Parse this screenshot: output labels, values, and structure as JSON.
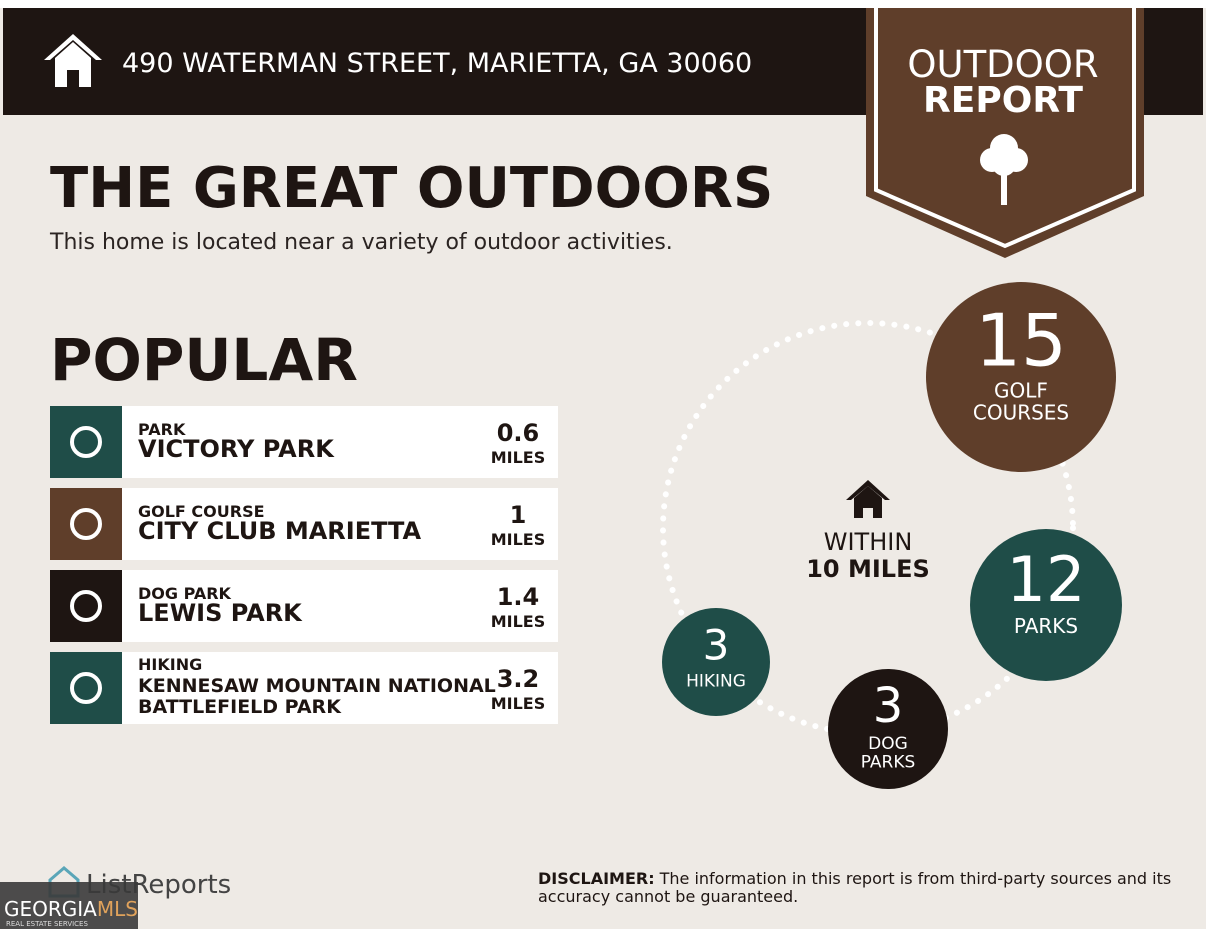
{
  "header": {
    "address": "490 WATERMAN STREET, MARIETTA, GA 30060"
  },
  "badge": {
    "line1": "OUTDOOR",
    "line2": "REPORT"
  },
  "title": "THE GREAT OUTDOORS",
  "subtitle": "This home is located near a variety of outdoor activities.",
  "popular": {
    "heading": "POPULAR",
    "items": [
      {
        "category": "PARK",
        "name_lines": [
          "VICTORY PARK"
        ],
        "distance": 0.6,
        "unit": "MILES",
        "color": "#1f4d48"
      },
      {
        "category": "GOLF COURSE",
        "name_lines": [
          "CITY CLUB MARIETTA"
        ],
        "distance": 1,
        "unit": "MILES",
        "color": "#5f3e2a"
      },
      {
        "category": "DOG PARK",
        "name_lines": [
          "LEWIS PARK"
        ],
        "distance": 1.4,
        "unit": "MILES",
        "color": "#1e1512"
      },
      {
        "category": "HIKING",
        "name_lines": [
          "KENNESAW MOUNTAIN NATIONAL",
          "BATTLEFIELD PARK"
        ],
        "distance": 3.2,
        "unit": "MILES",
        "color": "#1f4d48"
      }
    ]
  },
  "radius": {
    "line1": "WITHIN",
    "line2": "10 MILES",
    "stats": [
      {
        "count": 15,
        "label_lines": [
          "GOLF",
          "COURSES"
        ],
        "color": "#5f3e2a"
      },
      {
        "count": 12,
        "label_lines": [
          "PARKS"
        ],
        "color": "#1f4d48"
      },
      {
        "count": 3,
        "label_lines": [
          "DOG",
          "PARKS"
        ],
        "color": "#1e1512"
      },
      {
        "count": 3,
        "label_lines": [
          "HIKING"
        ],
        "color": "#1f4d48"
      }
    ]
  },
  "footer": {
    "brand": "ListReports",
    "disclaimer_label": "DISCLAIMER:",
    "disclaimer_lines": [
      "The information in this report is from third-party sources and its",
      "accuracy cannot be guaranteed."
    ]
  },
  "watermark": {
    "part1": "GEORGIA",
    "part2": "MLS",
    "tagline": "REAL ESTATE SERVICES"
  }
}
